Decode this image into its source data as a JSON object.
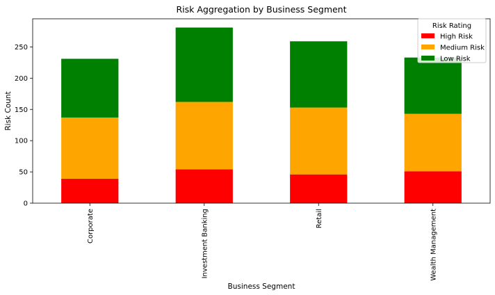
{
  "chart_data": {
    "type": "bar",
    "stacked": true,
    "title": "Risk Aggregation by Business Segment",
    "xlabel": "Business Segment",
    "ylabel": "Risk Count",
    "ylim": [
      0,
      295
    ],
    "yticks": [
      0,
      50,
      100,
      150,
      200,
      250
    ],
    "categories": [
      "Corporate",
      "Investment Banking",
      "Retail",
      "Wealth Management"
    ],
    "series": [
      {
        "name": "High Risk",
        "color": "#ff0000",
        "values": [
          39,
          54,
          46,
          51
        ]
      },
      {
        "name": "Medium Risk",
        "color": "#ffa500",
        "values": [
          98,
          108,
          107,
          92
        ]
      },
      {
        "name": "Low Risk",
        "color": "#008000",
        "values": [
          94,
          119,
          106,
          90
        ]
      }
    ],
    "legend": {
      "title": "Risk Rating",
      "position": "top-right"
    },
    "grid": false
  }
}
